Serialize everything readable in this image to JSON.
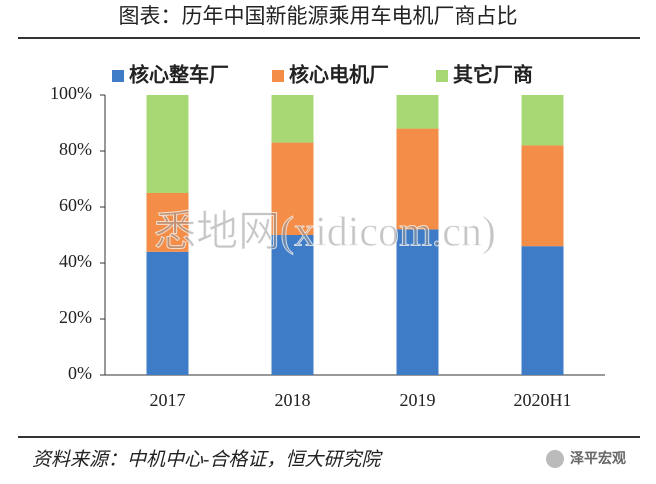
{
  "chart_data": {
    "type": "stacked_bar",
    "title": "图表：历年中国新能源乘用车电机厂商占比",
    "categories": [
      "2017",
      "2018",
      "2019",
      "2020H1"
    ],
    "series": [
      {
        "name": "核心整车厂",
        "color": "#3f7cc8",
        "values": [
          44,
          50,
          52,
          46
        ]
      },
      {
        "name": "核心电机厂",
        "color": "#f38d47",
        "values": [
          21,
          33,
          36,
          36
        ]
      },
      {
        "name": "其它厂商",
        "color": "#a8d873",
        "values": [
          35,
          17,
          12,
          18
        ]
      }
    ],
    "ylim": [
      0,
      100
    ],
    "yticks": [
      {
        "value": 0,
        "label": "0%"
      },
      {
        "value": 20,
        "label": "20%"
      },
      {
        "value": 40,
        "label": "40%"
      },
      {
        "value": 60,
        "label": "60%"
      },
      {
        "value": 80,
        "label": "80%"
      },
      {
        "value": 100,
        "label": "100%"
      }
    ],
    "source": "资料来源：中机中心-合格证，恒大研究院",
    "watermark": "悉地网(xidicom.cn)",
    "logo": "泽平宏观"
  }
}
